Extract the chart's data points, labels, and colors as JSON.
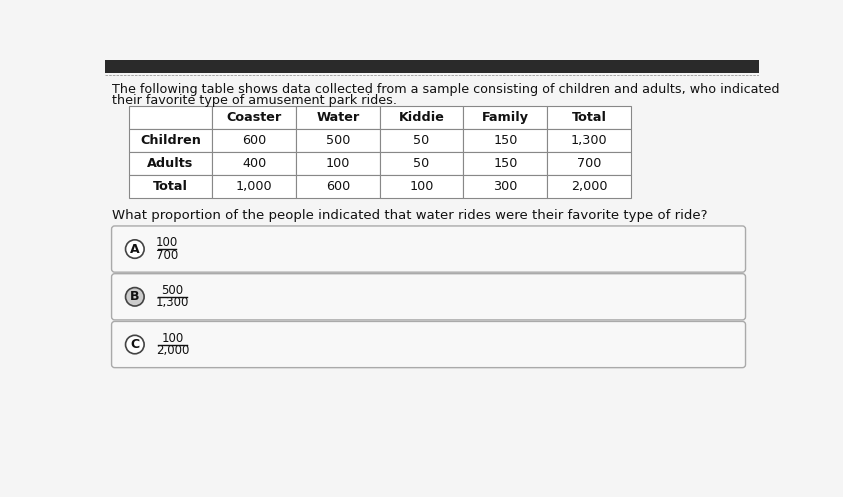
{
  "title_line1": "The following table shows data collected from a sample consisting of children and adults, who indicated",
  "title_line2": "their favorite type of amusement park rides.",
  "table_headers": [
    "",
    "Coaster",
    "Water",
    "Kiddie",
    "Family",
    "Total"
  ],
  "table_rows": [
    [
      "Children",
      "600",
      "500",
      "50",
      "150",
      "1,300"
    ],
    [
      "Adults",
      "400",
      "100",
      "50",
      "150",
      "700"
    ],
    [
      "Total",
      "1,000",
      "600",
      "100",
      "300",
      "2,000"
    ]
  ],
  "question": "What proportion of the people indicated that water rides were their favorite type of ride?",
  "options": [
    {
      "label": "A",
      "numerator": "100",
      "denominator": "700"
    },
    {
      "label": "B",
      "numerator": "500",
      "denominator": "1,300"
    },
    {
      "label": "C",
      "numerator": "100",
      "denominator": "2,000"
    }
  ],
  "top_bar_color": "#2a2a2a",
  "top_bar_height": 18,
  "bg_color": "#f5f5f5",
  "content_bg": "#ffffff",
  "table_bg": "#ffffff",
  "option_bg": "#ebebeb",
  "option_bg_white": "#f8f8f8",
  "text_color": "#111111",
  "border_color": "#888888",
  "option_border_color": "#aaaaaa",
  "circle_bg_A": "#ffffff",
  "circle_bg_B": "#cccccc",
  "circle_bg_C": "#ffffff",
  "circle_border": "#444444"
}
